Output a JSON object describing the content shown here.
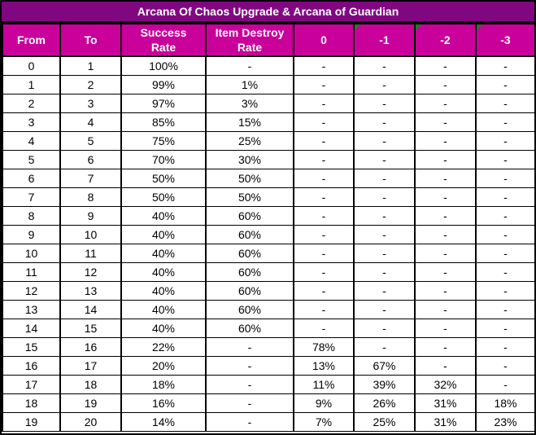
{
  "title": "Arcana Of Chaos Upgrade & Arcana of Guardian",
  "colors": {
    "title_bg": "#810781",
    "header_bg": "#C9009A",
    "header_text": "#FFFFFF",
    "grid_border": "#000000",
    "body_bg": "#FFFFFF",
    "body_text": "#000000",
    "error_triangle_green": "#1E7B1E"
  },
  "chart_data": {
    "type": "table",
    "title": "Arcana Of Chaos Upgrade & Arcana of Guardian",
    "columns": [
      {
        "key": "from",
        "label": "From",
        "line1": "From",
        "line2": "",
        "error_marker": false
      },
      {
        "key": "to",
        "label": "To",
        "line1": "To",
        "line2": "",
        "error_marker": false
      },
      {
        "key": "success_rate",
        "label": "Success Rate",
        "line1": "Success",
        "line2": "Rate",
        "error_marker": false
      },
      {
        "key": "item_destroy_rate",
        "label": "Item Destroy Rate",
        "line1": "Item Destroy",
        "line2": "Rate",
        "error_marker": false
      },
      {
        "key": "drop_0",
        "label": "0",
        "line1": "0",
        "line2": "",
        "error_marker": false
      },
      {
        "key": "drop_-1",
        "label": "-1",
        "line1": "-1",
        "line2": "",
        "error_marker": true
      },
      {
        "key": "drop_-2",
        "label": "-2",
        "line1": "-2",
        "line2": "",
        "error_marker": true
      },
      {
        "key": "drop_-3",
        "label": "-3",
        "line1": "-3",
        "line2": "",
        "error_marker": true
      }
    ],
    "rows": [
      [
        "0",
        "1",
        "100%",
        "-",
        "-",
        "-",
        "-",
        "-"
      ],
      [
        "1",
        "2",
        "99%",
        "1%",
        "-",
        "-",
        "-",
        "-"
      ],
      [
        "2",
        "3",
        "97%",
        "3%",
        "-",
        "-",
        "-",
        "-"
      ],
      [
        "3",
        "4",
        "85%",
        "15%",
        "-",
        "-",
        "-",
        "-"
      ],
      [
        "4",
        "5",
        "75%",
        "25%",
        "-",
        "-",
        "-",
        "-"
      ],
      [
        "5",
        "6",
        "70%",
        "30%",
        "-",
        "-",
        "-",
        "-"
      ],
      [
        "6",
        "7",
        "50%",
        "50%",
        "-",
        "-",
        "-",
        "-"
      ],
      [
        "7",
        "8",
        "50%",
        "50%",
        "-",
        "-",
        "-",
        "-"
      ],
      [
        "8",
        "9",
        "40%",
        "60%",
        "-",
        "-",
        "-",
        "-"
      ],
      [
        "9",
        "10",
        "40%",
        "60%",
        "-",
        "-",
        "-",
        "-"
      ],
      [
        "10",
        "11",
        "40%",
        "60%",
        "-",
        "-",
        "-",
        "-"
      ],
      [
        "11",
        "12",
        "40%",
        "60%",
        "-",
        "-",
        "-",
        "-"
      ],
      [
        "12",
        "13",
        "40%",
        "60%",
        "-",
        "-",
        "-",
        "-"
      ],
      [
        "13",
        "14",
        "40%",
        "60%",
        "-",
        "-",
        "-",
        "-"
      ],
      [
        "14",
        "15",
        "40%",
        "60%",
        "-",
        "-",
        "-",
        "-"
      ],
      [
        "15",
        "16",
        "22%",
        "-",
        "78%",
        "-",
        "-",
        "-"
      ],
      [
        "16",
        "17",
        "20%",
        "-",
        "13%",
        "67%",
        "-",
        "-"
      ],
      [
        "17",
        "18",
        "18%",
        "-",
        "11%",
        "39%",
        "32%",
        "-"
      ],
      [
        "18",
        "19",
        "16%",
        "-",
        "9%",
        "26%",
        "31%",
        "18%"
      ],
      [
        "19",
        "20",
        "14%",
        "-",
        "7%",
        "25%",
        "31%",
        "23%"
      ]
    ]
  }
}
